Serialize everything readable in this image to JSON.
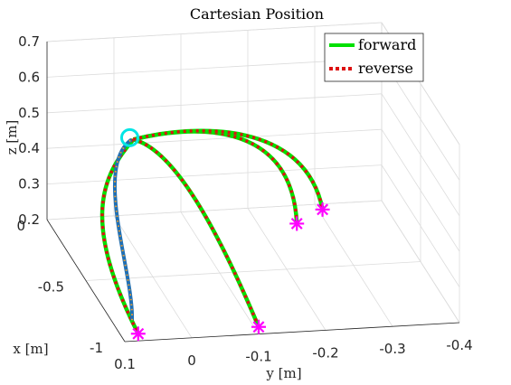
{
  "chart_data": {
    "type": "line",
    "title": "Cartesian Position",
    "xlabel": "x [m]",
    "ylabel": "y [m]",
    "zlabel": "z [m]",
    "x_ticks": [
      "-1",
      "-0.5",
      "0"
    ],
    "y_ticks": [
      "0.1",
      "0",
      "-0.1",
      "-0.2",
      "-0.3",
      "-0.4"
    ],
    "z_ticks": [
      "0.2",
      "0.3",
      "0.4",
      "0.5",
      "0.6",
      "0.7"
    ],
    "xlim": [
      -1,
      0
    ],
    "ylim": [
      0.1,
      -0.4
    ],
    "zlim": [
      0.2,
      0.7
    ],
    "grid": true,
    "legend_position": "top-right",
    "colors": {
      "forward": "#00e000",
      "reverse": "#dd1111",
      "start_marker": "#00e5e5",
      "end_marker": "#ff00ff",
      "approach": "#1f6fb5",
      "approach_dots": "#f0a030"
    },
    "series": [
      {
        "name": "forward",
        "style": "solid"
      },
      {
        "name": "reverse",
        "style": "dotted"
      }
    ],
    "start_point": {
      "x": -0.25,
      "y": 0.0,
      "z": 0.5
    },
    "trajectories": [
      {
        "end": {
          "x": -1.0,
          "y": 0.08,
          "z": 0.22
        }
      },
      {
        "end": {
          "x": -1.0,
          "y": -0.1,
          "z": 0.22
        }
      },
      {
        "end": {
          "x": -0.2,
          "y": -0.25,
          "z": 0.22
        }
      },
      {
        "end": {
          "x": -0.1,
          "y": -0.3,
          "z": 0.22
        }
      }
    ]
  }
}
